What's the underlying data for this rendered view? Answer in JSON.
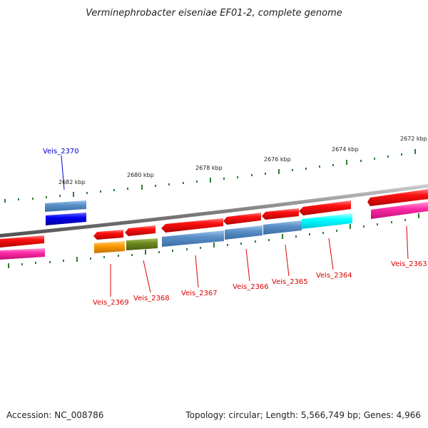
{
  "title": "Verminephrobacter eiseniae EF01-2, complete genome",
  "footer": {
    "accession": "Accession: NC_008786",
    "summary": "Topology: circular; Length: 5,566,749 bp; Genes: 4,966"
  },
  "scale_labels": [
    "2682 kbp",
    "2680 kbp",
    "2678 kbp",
    "2676 kbp",
    "2674 kbp",
    "2672 kbp"
  ],
  "colors": {
    "backbone": "#808080",
    "tick": "#2e7d32",
    "forward_label": "#0000cc",
    "reverse_label": "#dd0000"
  },
  "genes": [
    {
      "name": "Veis_2370",
      "strand": "forward",
      "highlight": "blue"
    },
    {
      "name": "Veis_2369",
      "strand": "reverse",
      "highlight": "orange"
    },
    {
      "name": "Veis_2368",
      "strand": "reverse",
      "highlight": "olive"
    },
    {
      "name": "Veis_2367",
      "strand": "reverse",
      "highlight": "steelblue"
    },
    {
      "name": "Veis_2366",
      "strand": "reverse",
      "highlight": "steelblue"
    },
    {
      "name": "Veis_2365",
      "strand": "reverse",
      "highlight": "steelblue"
    },
    {
      "name": "Veis_2364",
      "strand": "reverse",
      "highlight": "cyan"
    },
    {
      "name": "Veis_2363",
      "strand": "reverse",
      "highlight": "magenta"
    }
  ]
}
